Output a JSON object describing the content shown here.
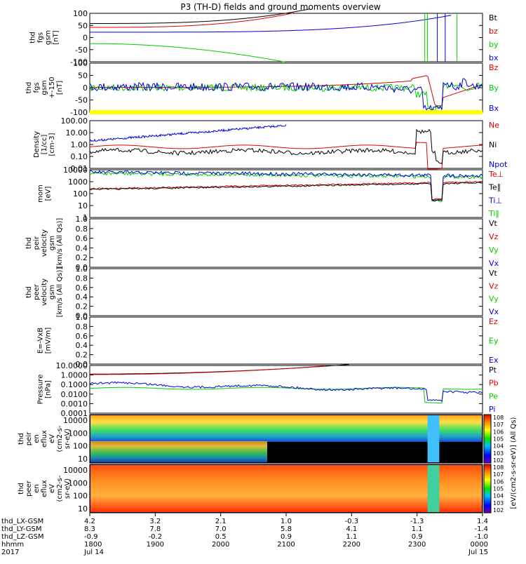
{
  "title": "P3 (TH-D) fields and ground moments overview",
  "colors": {
    "black": "#000000",
    "red": "#dd0000",
    "green": "#00cc00",
    "blue": "#0000dd",
    "yellow": "#ffff00"
  },
  "chart_data": [
    {
      "type": "line",
      "name": "fgs_gsm",
      "ylabel": [
        "thd",
        "fgs",
        "gsm",
        "[nT]"
      ],
      "yticks": [
        "100",
        "50",
        "0",
        "-50",
        "-100"
      ],
      "ylim": [
        -100,
        100
      ],
      "legend": [
        {
          "label": "Bt",
          "color": "black"
        },
        {
          "label": "bz",
          "color": "red"
        },
        {
          "label": "by",
          "color": "green"
        },
        {
          "label": "bx",
          "color": "blue"
        }
      ]
    },
    {
      "type": "line",
      "name": "fgs_gsm_clip",
      "ylabel": [
        "thd",
        "fgs",
        "gsm",
        "+-150",
        "[nT]"
      ],
      "yticks": [
        "100",
        "50",
        "0",
        "-50",
        "-100"
      ],
      "ylim": [
        -150,
        150
      ],
      "legend": [
        {
          "label": "Bz",
          "color": "red"
        },
        {
          "label": "By",
          "color": "green"
        },
        {
          "label": "Bx",
          "color": "blue"
        }
      ]
    },
    {
      "type": "line",
      "name": "density",
      "scale": "log",
      "ylabel": [
        "Density",
        "[1/cc]",
        "[cm^-3]"
      ],
      "yticks": [
        "100.00",
        "10.00",
        "1.00",
        "0.10",
        "0.01"
      ],
      "legend": [
        {
          "label": "Ne",
          "color": "red"
        },
        {
          "label": "Ni",
          "color": "black"
        },
        {
          "label": "Npot",
          "color": "blue"
        }
      ]
    },
    {
      "type": "line",
      "name": "temperature",
      "scale": "log",
      "ylabel": [
        "mom",
        "[eV]"
      ],
      "yticks": [
        "10000",
        "1000",
        "100",
        "10",
        "1"
      ],
      "legend": [
        {
          "label": "Te⊥",
          "color": "red"
        },
        {
          "label": "Te∥",
          "color": "black"
        },
        {
          "label": "Ti⊥",
          "color": "blue"
        },
        {
          "label": "Ti∥",
          "color": "green"
        }
      ]
    },
    {
      "type": "line",
      "name": "peir_velocity",
      "ylabel": [
        "thd",
        "peir",
        "velocity",
        "gsm",
        "[km/s (All Qs)]"
      ],
      "yticks": [
        "1.0",
        "0.8",
        "0.6",
        "0.4",
        "0.2",
        "0.0"
      ],
      "ylim": [
        0,
        1
      ],
      "legend": [
        {
          "label": "Vt",
          "color": "black"
        },
        {
          "label": "Vz",
          "color": "red"
        },
        {
          "label": "Vy",
          "color": "green"
        },
        {
          "label": "Vx",
          "color": "blue"
        }
      ]
    },
    {
      "type": "line",
      "name": "peer_velocity",
      "ylabel": [
        "thd",
        "peer",
        "velocity",
        "gsm",
        "[km/s (All Qs)]"
      ],
      "yticks": [
        "1.0",
        "0.8",
        "0.6",
        "0.4",
        "0.2",
        "0.0"
      ],
      "ylim": [
        0,
        1
      ],
      "legend": [
        {
          "label": "Vt",
          "color": "black"
        },
        {
          "label": "Vz",
          "color": "red"
        },
        {
          "label": "Vy",
          "color": "green"
        },
        {
          "label": "Vx",
          "color": "blue"
        }
      ]
    },
    {
      "type": "line",
      "name": "vxb",
      "ylabel": [
        "E=-VxB",
        "[mV/m]"
      ],
      "yticks": [
        "1.0",
        "0.8",
        "0.6",
        "0.4",
        "0.2",
        "0.0"
      ],
      "ylim": [
        0,
        1
      ],
      "legend": [
        {
          "label": "Ez",
          "color": "red"
        },
        {
          "label": "Ey",
          "color": "green"
        },
        {
          "label": "Ex",
          "color": "blue"
        }
      ]
    },
    {
      "type": "line",
      "name": "pressure",
      "scale": "log",
      "ylabel": [
        "Pressure",
        "[nPa]"
      ],
      "yticks": [
        "10.0000",
        "1.0000",
        "0.1000",
        "0.0100",
        "0.0010",
        "0.0001"
      ],
      "legend": [
        {
          "label": "Pt",
          "color": "black"
        },
        {
          "label": "Pb",
          "color": "red"
        },
        {
          "label": "Pe",
          "color": "green"
        },
        {
          "label": "Pi",
          "color": "blue"
        }
      ]
    },
    {
      "type": "heatmap",
      "name": "peir_eflux",
      "ylabel": [
        "thd",
        "peir",
        "en",
        "eflux",
        "eV",
        "(cm^2-s-",
        "sr-eV)"
      ],
      "yticks": [
        "10000",
        "1000",
        "100",
        "10"
      ]
    },
    {
      "type": "heatmap",
      "name": "peer_eflux",
      "ylabel": [
        "thd",
        "peer",
        "en",
        "eflux",
        "eV",
        "(cm^2-s-",
        "sr-eV)"
      ],
      "yticks": [
        "10000",
        "1000",
        "100",
        "10"
      ]
    }
  ],
  "colorbar": {
    "ticks": [
      "10^8",
      "10^7",
      "10^6",
      "10^5",
      "10^4",
      "10^3",
      "10^2"
    ],
    "label": "[eV/(cm^2-s-sr-eV)] (All Qs)"
  },
  "axis_rows": [
    {
      "label": "thd_LX-GSM",
      "values": [
        "4.2",
        "3.2",
        "2.1",
        "1.0",
        "-0.3",
        "-1.3",
        "1.4"
      ]
    },
    {
      "label": "thd_LY-GSM",
      "values": [
        "8.3",
        "7.8",
        "7.0",
        "5.8",
        "4.1",
        "1.1",
        "-1.4"
      ]
    },
    {
      "label": "thd_LZ-GSM",
      "values": [
        "-0.9",
        "-0.2",
        "0.5",
        "0.9",
        "1.1",
        "0.9",
        "-1.0"
      ]
    },
    {
      "label": "hhmm",
      "values": [
        "1800",
        "1900",
        "2000",
        "2100",
        "2200",
        "2300",
        "0000"
      ]
    },
    {
      "label": "2017",
      "values": [
        "Jul 14",
        "",
        "",
        "",
        "",
        "",
        "Jul 15"
      ]
    }
  ]
}
